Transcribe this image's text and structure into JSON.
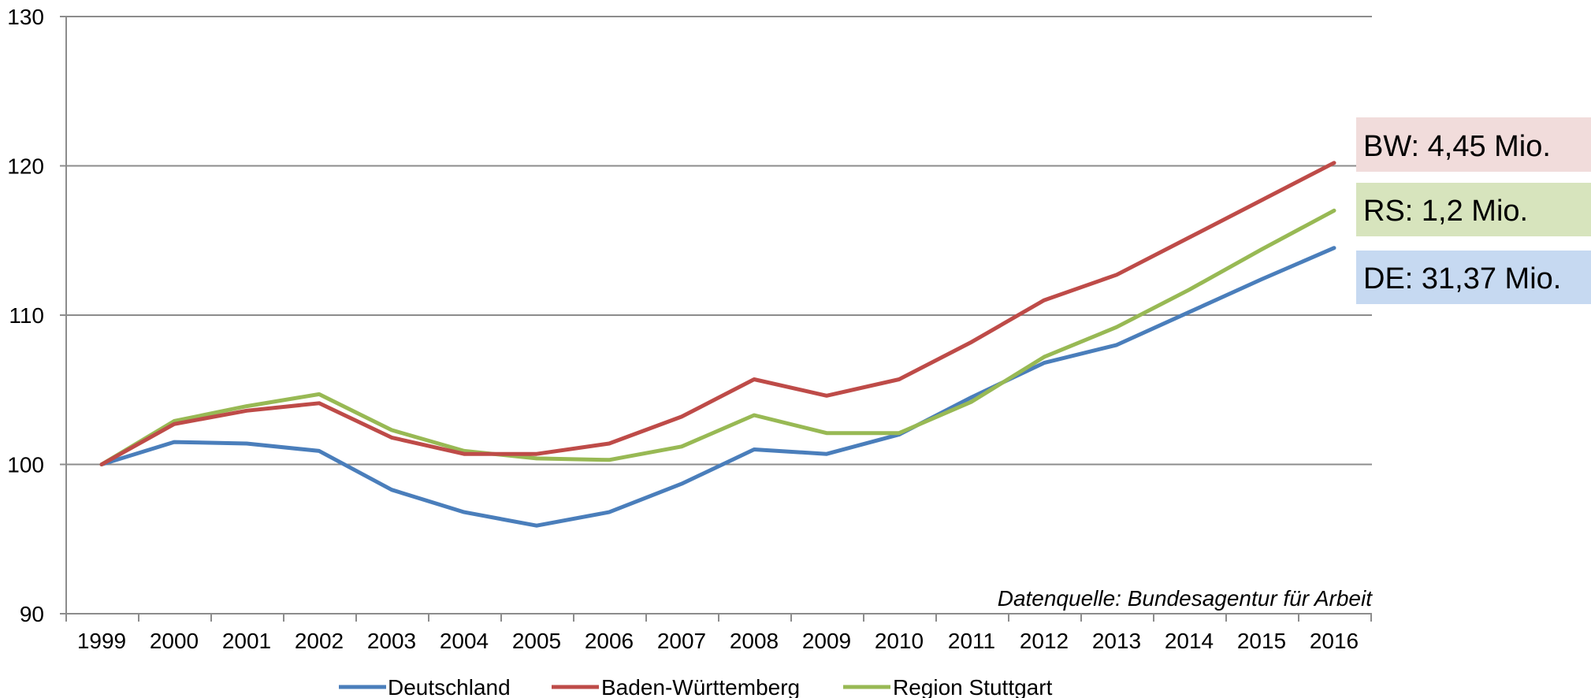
{
  "chart_data": {
    "type": "line",
    "title": "",
    "xlabel": "",
    "ylabel": "",
    "categories": [
      "1999",
      "2000",
      "2001",
      "2002",
      "2003",
      "2004",
      "2005",
      "2006",
      "2007",
      "2008",
      "2009",
      "2010",
      "2011",
      "2012",
      "2013",
      "2014",
      "2015",
      "2016"
    ],
    "ylim": [
      90,
      130
    ],
    "yticks": [
      90,
      100,
      110,
      120,
      130
    ],
    "grid": true,
    "legend_position": "bottom",
    "series": [
      {
        "name": "Deutschland",
        "color": "#4a7ebb",
        "values": [
          100,
          101.5,
          101.4,
          100.9,
          98.3,
          96.8,
          95.9,
          96.8,
          98.7,
          101.0,
          100.7,
          102.0,
          104.5,
          106.8,
          108.0,
          110.2,
          112.4,
          114.5
        ]
      },
      {
        "name": "Baden-Württemberg",
        "color": "#be4b48",
        "values": [
          100,
          102.7,
          103.6,
          104.1,
          101.8,
          100.7,
          100.7,
          101.4,
          103.2,
          105.7,
          104.6,
          105.7,
          108.2,
          111.0,
          112.7,
          115.2,
          117.7,
          120.2
        ]
      },
      {
        "name": "Region Stuttgart",
        "color": "#98b954",
        "values": [
          100,
          102.9,
          103.9,
          104.7,
          102.3,
          100.9,
          100.4,
          100.3,
          101.2,
          103.3,
          102.1,
          102.1,
          104.2,
          107.2,
          109.2,
          111.7,
          114.4,
          117.0
        ]
      }
    ],
    "annotations": {
      "source": "Datenquelle: Bundesagentur für Arbeit",
      "callouts": [
        {
          "text": "BW: 4,45 Mio.",
          "fill": "#f1dcdb"
        },
        {
          "text": "RS: 1,2 Mio.",
          "fill": "#d7e4bd"
        },
        {
          "text": "DE: 31,37 Mio.",
          "fill": "#c6d9f1"
        }
      ]
    }
  }
}
